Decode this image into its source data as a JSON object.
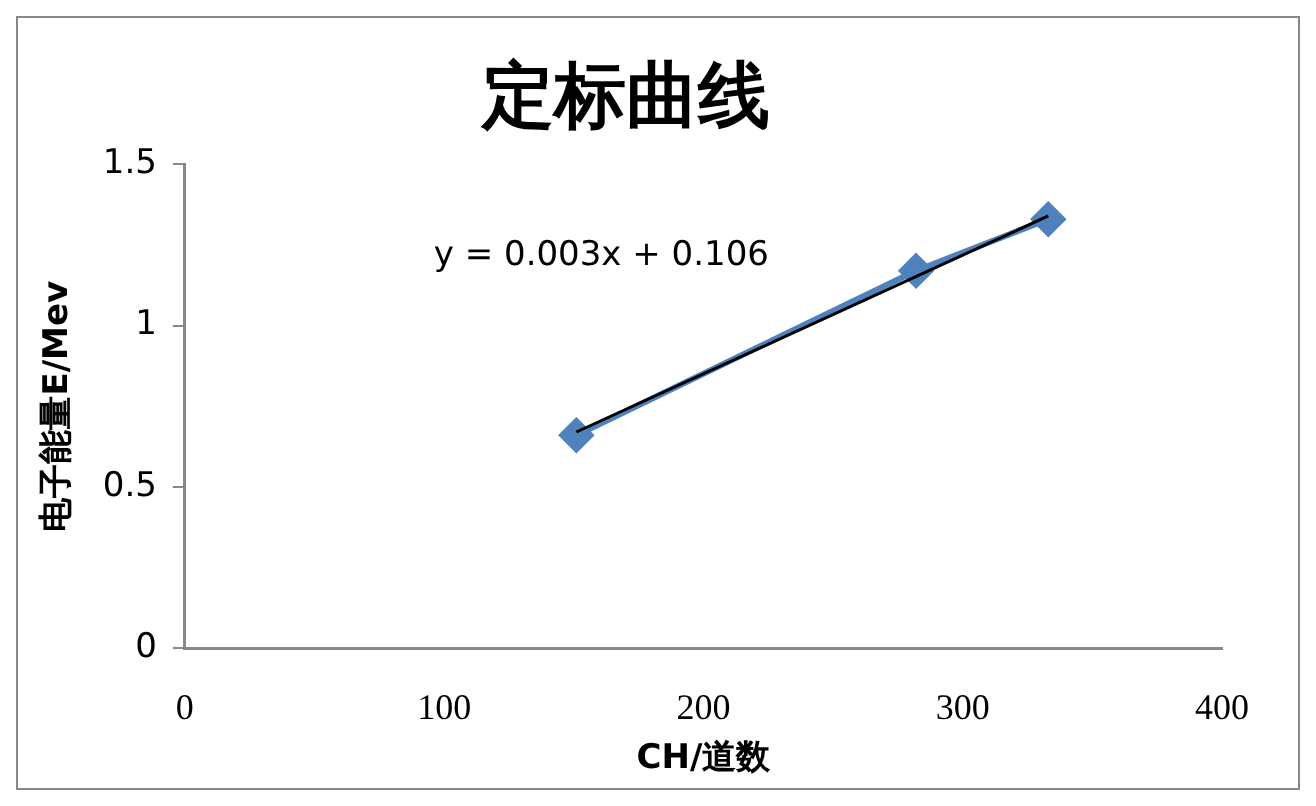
{
  "chart_data": {
    "type": "scatter",
    "title": "定标曲线",
    "xlabel": "CH/道数",
    "ylabel": "电子能量E/Mev",
    "x": [
      151,
      282,
      333
    ],
    "series": [
      {
        "type": "line",
        "color": "#4f81bd",
        "values": [
          0.66,
          1.17,
          1.33
        ],
        "marker": "diamond"
      },
      {
        "type": "line",
        "color": "#000000",
        "x": [
          151,
          333
        ],
        "values": [
          0.67,
          1.34
        ],
        "marker": "none"
      }
    ],
    "annotations": [
      "y = 0.003x + 0.106"
    ],
    "xlim": [
      0,
      400
    ],
    "xticks": [
      0,
      100,
      200,
      300,
      400
    ],
    "ylim": [
      0,
      1.5
    ],
    "yticks": [
      0,
      0.5,
      1,
      1.5
    ],
    "grid": false,
    "legend": false
  }
}
